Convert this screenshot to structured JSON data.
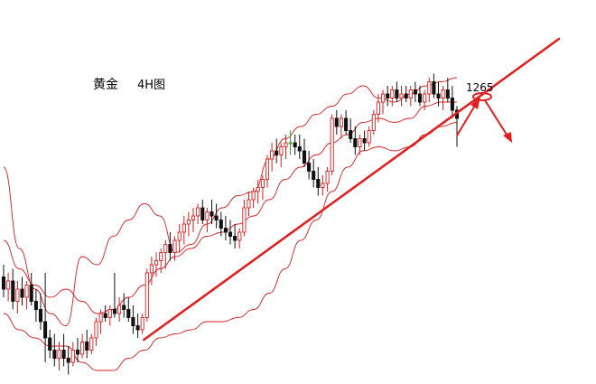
{
  "title": "黄金",
  "timeframe": "4H图",
  "price_label": "1265",
  "colors": {
    "band": "#d81e1e",
    "bull": "#d81e1e",
    "bear": "#111111",
    "doji": "#22aa22",
    "annotation": "#e02020",
    "background": "#ffffff"
  },
  "chart_data": {
    "type": "candlestick",
    "instrument": "黄金",
    "timeframe": "4H",
    "overlays": [
      "bollinger-bands",
      "ascending-trendline"
    ],
    "axes_shown": false,
    "grid": false,
    "ylim": [
      1200,
      1280
    ],
    "trendline": {
      "from": [
        3,
        1213
      ],
      "to": [
        110,
        1277
      ]
    },
    "annotation": {
      "level": 1265,
      "direction_after_touch": "down"
    },
    "bands": {
      "upper": [
        1250,
        1230,
        1220,
        1214,
        1211,
        1228,
        1226,
        1233,
        1237,
        1241,
        1238,
        1229,
        1231,
        1236,
        1240,
        1243,
        1244,
        1252,
        1257,
        1260,
        1263,
        1265,
        1268,
        1270,
        1267,
        1266,
        1268,
        1270,
        1271,
        1272
      ],
      "middle": [
        1232,
        1225,
        1221,
        1218,
        1220,
        1217,
        1214,
        1215,
        1218,
        1221,
        1225,
        1228,
        1230,
        1233,
        1234,
        1236,
        1238,
        1242,
        1247,
        1250,
        1253,
        1256,
        1258,
        1261,
        1262,
        1261,
        1262,
        1265,
        1266,
        1266
      ],
      "lower": [
        1214,
        1210,
        1208,
        1206,
        1206,
        1202,
        1200,
        1200,
        1203,
        1205,
        1208,
        1209,
        1210,
        1212,
        1212,
        1213,
        1215,
        1219,
        1225,
        1232,
        1237,
        1244,
        1250,
        1254,
        1255,
        1254,
        1255,
        1258,
        1260,
        1261
      ]
    },
    "candles": [
      {
        "o": 1223,
        "h": 1226,
        "l": 1218,
        "c": 1220
      },
      {
        "o": 1220,
        "h": 1224,
        "l": 1217,
        "c": 1222
      },
      {
        "o": 1222,
        "h": 1225,
        "l": 1215,
        "c": 1217
      },
      {
        "o": 1217,
        "h": 1222,
        "l": 1214,
        "c": 1220
      },
      {
        "o": 1220,
        "h": 1223,
        "l": 1216,
        "c": 1218
      },
      {
        "o": 1218,
        "h": 1222,
        "l": 1215,
        "c": 1221
      },
      {
        "o": 1221,
        "h": 1224,
        "l": 1216,
        "c": 1217
      },
      {
        "o": 1217,
        "h": 1220,
        "l": 1212,
        "c": 1215
      },
      {
        "o": 1215,
        "h": 1219,
        "l": 1210,
        "c": 1212
      },
      {
        "o": 1212,
        "h": 1224,
        "l": 1202,
        "c": 1208
      },
      {
        "o": 1208,
        "h": 1210,
        "l": 1203,
        "c": 1205
      },
      {
        "o": 1205,
        "h": 1209,
        "l": 1201,
        "c": 1203
      },
      {
        "o": 1203,
        "h": 1207,
        "l": 1200,
        "c": 1205
      },
      {
        "o": 1205,
        "h": 1209,
        "l": 1201,
        "c": 1203
      },
      {
        "o": 1203,
        "h": 1206,
        "l": 1199,
        "c": 1202
      },
      {
        "o": 1202,
        "h": 1207,
        "l": 1201,
        "c": 1205
      },
      {
        "o": 1205,
        "h": 1208,
        "l": 1202,
        "c": 1204
      },
      {
        "o": 1204,
        "h": 1209,
        "l": 1203,
        "c": 1207
      },
      {
        "o": 1207,
        "h": 1210,
        "l": 1203,
        "c": 1205
      },
      {
        "o": 1205,
        "h": 1209,
        "l": 1204,
        "c": 1208
      },
      {
        "o": 1208,
        "h": 1213,
        "l": 1206,
        "c": 1212
      },
      {
        "o": 1212,
        "h": 1215,
        "l": 1209,
        "c": 1214
      },
      {
        "o": 1214,
        "h": 1216,
        "l": 1212,
        "c": 1213
      },
      {
        "o": 1213,
        "h": 1216,
        "l": 1211,
        "c": 1215
      },
      {
        "o": 1215,
        "h": 1224,
        "l": 1213,
        "c": 1214
      },
      {
        "o": 1214,
        "h": 1218,
        "l": 1212,
        "c": 1216
      },
      {
        "o": 1216,
        "h": 1219,
        "l": 1213,
        "c": 1215
      },
      {
        "o": 1215,
        "h": 1218,
        "l": 1212,
        "c": 1213
      },
      {
        "o": 1213,
        "h": 1216,
        "l": 1209,
        "c": 1211
      },
      {
        "o": 1211,
        "h": 1214,
        "l": 1208,
        "c": 1210
      },
      {
        "o": 1210,
        "h": 1214,
        "l": 1209,
        "c": 1213
      },
      {
        "o": 1213,
        "h": 1225,
        "l": 1212,
        "c": 1224
      },
      {
        "o": 1224,
        "h": 1228,
        "l": 1221,
        "c": 1226
      },
      {
        "o": 1226,
        "h": 1229,
        "l": 1223,
        "c": 1227
      },
      {
        "o": 1227,
        "h": 1230,
        "l": 1224,
        "c": 1229
      },
      {
        "o": 1229,
        "h": 1232,
        "l": 1225,
        "c": 1231
      },
      {
        "o": 1231,
        "h": 1234,
        "l": 1227,
        "c": 1229
      },
      {
        "o": 1229,
        "h": 1233,
        "l": 1227,
        "c": 1232
      },
      {
        "o": 1232,
        "h": 1236,
        "l": 1229,
        "c": 1234
      },
      {
        "o": 1234,
        "h": 1238,
        "l": 1231,
        "c": 1236
      },
      {
        "o": 1236,
        "h": 1239,
        "l": 1233,
        "c": 1237
      },
      {
        "o": 1237,
        "h": 1240,
        "l": 1234,
        "c": 1238
      },
      {
        "o": 1238,
        "h": 1241,
        "l": 1236,
        "c": 1240
      },
      {
        "o": 1240,
        "h": 1242,
        "l": 1236,
        "c": 1237
      },
      {
        "o": 1237,
        "h": 1240,
        "l": 1234,
        "c": 1239
      },
      {
        "o": 1239,
        "h": 1242,
        "l": 1236,
        "c": 1238
      },
      {
        "o": 1238,
        "h": 1241,
        "l": 1235,
        "c": 1237
      },
      {
        "o": 1237,
        "h": 1239,
        "l": 1233,
        "c": 1235
      },
      {
        "o": 1235,
        "h": 1238,
        "l": 1232,
        "c": 1234
      },
      {
        "o": 1234,
        "h": 1237,
        "l": 1231,
        "c": 1233
      },
      {
        "o": 1233,
        "h": 1236,
        "l": 1230,
        "c": 1232
      },
      {
        "o": 1232,
        "h": 1235,
        "l": 1230,
        "c": 1234
      },
      {
        "o": 1234,
        "h": 1242,
        "l": 1233,
        "c": 1240
      },
      {
        "o": 1240,
        "h": 1244,
        "l": 1238,
        "c": 1242
      },
      {
        "o": 1242,
        "h": 1245,
        "l": 1240,
        "c": 1244
      },
      {
        "o": 1244,
        "h": 1247,
        "l": 1241,
        "c": 1245
      },
      {
        "o": 1245,
        "h": 1248,
        "l": 1242,
        "c": 1247
      },
      {
        "o": 1247,
        "h": 1253,
        "l": 1245,
        "c": 1252
      },
      {
        "o": 1252,
        "h": 1256,
        "l": 1249,
        "c": 1254
      },
      {
        "o": 1254,
        "h": 1257,
        "l": 1251,
        "c": 1253
      },
      {
        "o": 1253,
        "h": 1256,
        "l": 1250,
        "c": 1255
      },
      {
        "o": 1255,
        "h": 1258,
        "l": 1252,
        "c": 1256
      },
      {
        "o": 1256,
        "h": 1259,
        "l": 1253,
        "c": 1256
      },
      {
        "o": 1256,
        "h": 1258,
        "l": 1253,
        "c": 1255
      },
      {
        "o": 1255,
        "h": 1258,
        "l": 1252,
        "c": 1254
      },
      {
        "o": 1254,
        "h": 1257,
        "l": 1250,
        "c": 1251
      },
      {
        "o": 1251,
        "h": 1254,
        "l": 1247,
        "c": 1249
      },
      {
        "o": 1249,
        "h": 1252,
        "l": 1245,
        "c": 1247
      },
      {
        "o": 1247,
        "h": 1250,
        "l": 1243,
        "c": 1245
      },
      {
        "o": 1245,
        "h": 1248,
        "l": 1243,
        "c": 1246
      },
      {
        "o": 1246,
        "h": 1250,
        "l": 1244,
        "c": 1249
      },
      {
        "o": 1249,
        "h": 1263,
        "l": 1248,
        "c": 1262
      },
      {
        "o": 1262,
        "h": 1264,
        "l": 1258,
        "c": 1260
      },
      {
        "o": 1260,
        "h": 1263,
        "l": 1257,
        "c": 1262
      },
      {
        "o": 1262,
        "h": 1264,
        "l": 1258,
        "c": 1259
      },
      {
        "o": 1259,
        "h": 1262,
        "l": 1256,
        "c": 1257
      },
      {
        "o": 1257,
        "h": 1260,
        "l": 1253,
        "c": 1255
      },
      {
        "o": 1255,
        "h": 1258,
        "l": 1253,
        "c": 1257
      },
      {
        "o": 1257,
        "h": 1259,
        "l": 1254,
        "c": 1256
      },
      {
        "o": 1256,
        "h": 1260,
        "l": 1255,
        "c": 1259
      },
      {
        "o": 1259,
        "h": 1264,
        "l": 1258,
        "c": 1263
      },
      {
        "o": 1263,
        "h": 1268,
        "l": 1261,
        "c": 1266
      },
      {
        "o": 1266,
        "h": 1269,
        "l": 1263,
        "c": 1268
      },
      {
        "o": 1268,
        "h": 1270,
        "l": 1265,
        "c": 1267
      },
      {
        "o": 1267,
        "h": 1270,
        "l": 1265,
        "c": 1269
      },
      {
        "o": 1269,
        "h": 1271,
        "l": 1266,
        "c": 1267
      },
      {
        "o": 1267,
        "h": 1270,
        "l": 1265,
        "c": 1268
      },
      {
        "o": 1268,
        "h": 1270,
        "l": 1266,
        "c": 1267
      },
      {
        "o": 1267,
        "h": 1270,
        "l": 1265,
        "c": 1269
      },
      {
        "o": 1269,
        "h": 1271,
        "l": 1266,
        "c": 1268
      },
      {
        "o": 1268,
        "h": 1270,
        "l": 1265,
        "c": 1266
      },
      {
        "o": 1266,
        "h": 1269,
        "l": 1264,
        "c": 1268
      },
      {
        "o": 1268,
        "h": 1272,
        "l": 1266,
        "c": 1271
      },
      {
        "o": 1271,
        "h": 1273,
        "l": 1267,
        "c": 1268
      },
      {
        "o": 1268,
        "h": 1271,
        "l": 1265,
        "c": 1267
      },
      {
        "o": 1267,
        "h": 1270,
        "l": 1264,
        "c": 1269
      },
      {
        "o": 1269,
        "h": 1272,
        "l": 1266,
        "c": 1267
      },
      {
        "o": 1267,
        "h": 1270,
        "l": 1262,
        "c": 1264
      },
      {
        "o": 1264,
        "h": 1265,
        "l": 1255,
        "c": 1262
      }
    ]
  }
}
